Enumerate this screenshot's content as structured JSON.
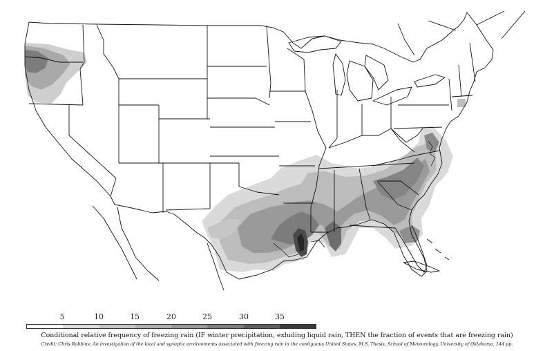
{
  "map": {
    "region": "contiguous United States",
    "variable": "conditional relative frequency of freezing rain",
    "shading": {
      "colors": [
        "#ffffff",
        "#dcdcdc",
        "#c6c6c6",
        "#b0b0b0",
        "#989898",
        "#7e7e7e",
        "#606060",
        "#3a3a3a"
      ]
    }
  },
  "legend": {
    "ticks": [
      "5",
      "10",
      "15",
      "20",
      "25",
      "30",
      "35"
    ]
  },
  "caption": {
    "title": "Conditional relative frequency of freezing rain (IF winter precipitation, exluding liquid rain, THEN the fraction of events that are freezing rain)",
    "credit": "Credit: Chris Robbins: An investigation of the local and synoptic environments associated with freezing rain in the contiguous United States. M.S. Thesis, School of Meteorology, University of Oklahoma, 144 pp."
  }
}
